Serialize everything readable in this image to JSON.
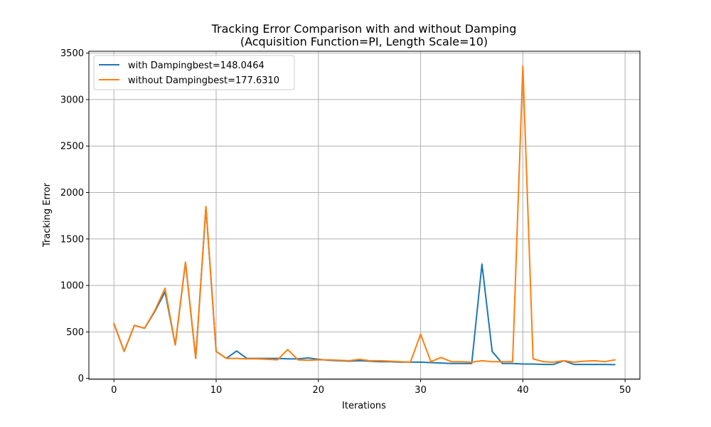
{
  "chart_data": {
    "type": "line",
    "title": "Tracking Error Comparison with and without Damping",
    "subtitle": "(Acquisition Function=PI, Length Scale=10)",
    "xlabel": "Iterations",
    "ylabel": "Tracking Error",
    "xlim": [
      -2.45,
      51.45
    ],
    "ylim": [
      -10,
      3520
    ],
    "xticks": [
      0,
      10,
      20,
      30,
      40,
      50
    ],
    "yticks": [
      0,
      500,
      1000,
      1500,
      2000,
      2500,
      3000,
      3500
    ],
    "grid": true,
    "legend_position": "top-left",
    "x": [
      0,
      1,
      2,
      3,
      4,
      5,
      6,
      7,
      8,
      9,
      10,
      11,
      12,
      13,
      14,
      15,
      16,
      17,
      18,
      19,
      20,
      21,
      22,
      23,
      24,
      25,
      26,
      27,
      28,
      29,
      30,
      31,
      32,
      33,
      34,
      35,
      36,
      37,
      38,
      39,
      40,
      41,
      42,
      43,
      44,
      45,
      46,
      47,
      48,
      49
    ],
    "series": [
      {
        "name": "with Dampingbest=148.0464",
        "color": "#1f77b4",
        "values": [
          590,
          290,
          570,
          540,
          720,
          930,
          360,
          1250,
          215,
          1840,
          290,
          215,
          295,
          215,
          215,
          215,
          215,
          210,
          210,
          220,
          205,
          195,
          190,
          185,
          190,
          185,
          180,
          180,
          175,
          175,
          175,
          170,
          165,
          160,
          160,
          160,
          1230,
          290,
          160,
          160,
          155,
          155,
          150,
          150,
          190,
          150,
          150,
          150,
          150,
          148
        ]
      },
      {
        "name": "without Dampingbest=177.6310",
        "color": "#ff7f0e",
        "values": [
          590,
          290,
          570,
          540,
          730,
          970,
          360,
          1250,
          215,
          1850,
          290,
          215,
          215,
          210,
          210,
          205,
          200,
          310,
          200,
          195,
          200,
          200,
          195,
          190,
          205,
          190,
          190,
          185,
          180,
          175,
          475,
          180,
          225,
          180,
          180,
          175,
          190,
          180,
          180,
          180,
          3360,
          210,
          180,
          175,
          190,
          175,
          185,
          190,
          180,
          200
        ]
      }
    ]
  }
}
